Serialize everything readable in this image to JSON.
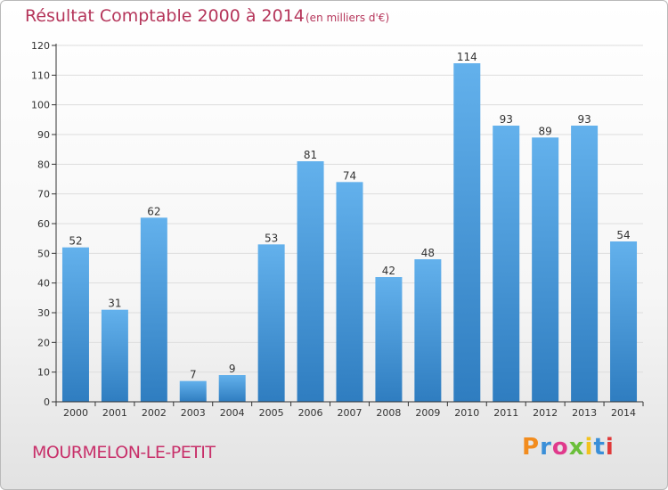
{
  "header": {
    "title": "Résultat Comptable 2000 à 2014",
    "subtitle": "(en milliers d'€)"
  },
  "footer": {
    "commune": "MOURMELON-LE-PETIT",
    "logo_text": "Proxiti",
    "logo_colors": [
      "#f28c1e",
      "#3a8fd8",
      "#e03a8c",
      "#6bbf3a",
      "#f2c21e",
      "#3a8fd8",
      "#e03a3a"
    ]
  },
  "colors": {
    "bar_light": "#63b1ec",
    "bar_dark": "#2f7dc0",
    "axis": "#333333",
    "grid": "#dddddd"
  },
  "chart_data": {
    "type": "bar",
    "title": "Résultat Comptable 2000 à 2014",
    "subtitle": "(en milliers d'€)",
    "xlabel": "",
    "ylabel": "",
    "categories": [
      "2000",
      "2001",
      "2002",
      "2003",
      "2004",
      "2005",
      "2006",
      "2007",
      "2008",
      "2009",
      "2010",
      "2011",
      "2012",
      "2013",
      "2014"
    ],
    "values": [
      52,
      31,
      62,
      7,
      9,
      53,
      81,
      74,
      42,
      48,
      114,
      93,
      89,
      93,
      54
    ],
    "ylim": [
      0,
      120
    ],
    "yticks": [
      0,
      10,
      20,
      30,
      40,
      50,
      60,
      70,
      80,
      90,
      100,
      110,
      120
    ],
    "grid": true,
    "legend": "none"
  }
}
